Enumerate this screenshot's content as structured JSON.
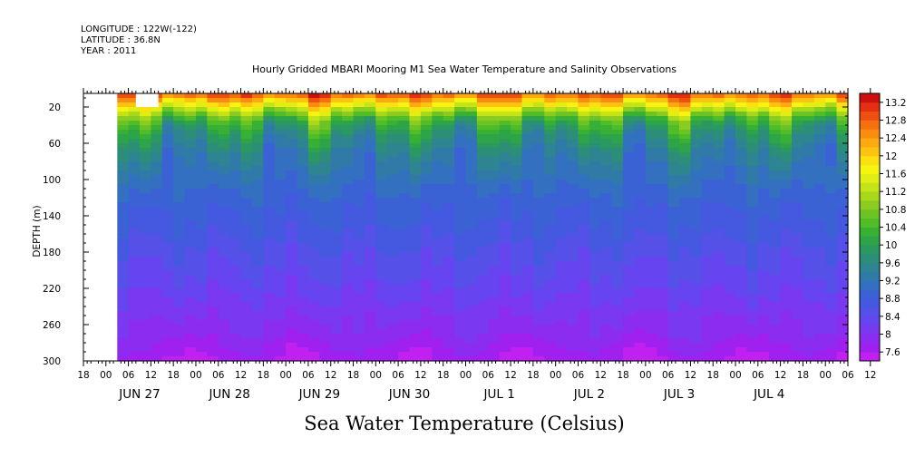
{
  "header": {
    "longitude": "LONGITUDE : 122W(-122)",
    "latitude": "LATITUDE : 36.8N",
    "year": "YEAR : 2011"
  },
  "chart_data": {
    "type": "heatmap",
    "title": "Hourly Gridded MBARI Mooring M1 Sea Water Temperature and Salinity Observations",
    "bottom_label": "Sea Water Temperature (Celsius)",
    "ylabel": "DEPTH (m)",
    "y_ticks": [
      20,
      60,
      100,
      140,
      180,
      220,
      260,
      300
    ],
    "ylim": [
      300,
      5
    ],
    "x_hour_ticks": [
      "18",
      "00",
      "06",
      "12",
      "18",
      "00",
      "06",
      "12",
      "18",
      "00",
      "06",
      "12",
      "18",
      "00",
      "06",
      "12",
      "18",
      "00",
      "06",
      "12",
      "18",
      "00",
      "06",
      "12",
      "18",
      "00",
      "06",
      "12",
      "18",
      "00",
      "06",
      "12",
      "18",
      "00",
      "06",
      "12"
    ],
    "x_date_labels": [
      "JUN 27",
      "JUN 28",
      "JUN 29",
      "JUN 30",
      "JUL  1",
      "JUL  2",
      "JUL  3",
      "JUL  4"
    ],
    "x_range_hours": [
      -9,
      195
    ],
    "data_start_hour": 0,
    "colorbar": {
      "labels": [
        "13.2",
        "12.8",
        "12.4",
        "12",
        "11.6",
        "11.2",
        "10.8",
        "10.4",
        "10",
        "9.6",
        "9.2",
        "8.8",
        "8.4",
        "8",
        "7.6"
      ],
      "levels": [
        7.4,
        7.6,
        7.8,
        8.0,
        8.2,
        8.4,
        8.6,
        8.8,
        9.0,
        9.2,
        9.4,
        9.6,
        9.8,
        10.0,
        10.2,
        10.4,
        10.6,
        10.8,
        11.0,
        11.2,
        11.4,
        11.6,
        11.8,
        12.0,
        12.2,
        12.4,
        12.6,
        12.8,
        13.0,
        13.2,
        13.4
      ],
      "colors": [
        "#c020f0",
        "#a020f0",
        "#8c2cf0",
        "#7a38f0",
        "#6644f0",
        "#5450e8",
        "#4458e0",
        "#3a62d4",
        "#3470c0",
        "#307aa8",
        "#2e8490",
        "#2c8e78",
        "#2a9860",
        "#2ea448",
        "#38b034",
        "#50bc28",
        "#6cc424",
        "#8ccc20",
        "#a8d81c",
        "#c4e418",
        "#e0ee14",
        "#f6f410",
        "#fce010",
        "#fcc410",
        "#fcaa10",
        "#fa8c10",
        "#f67010",
        "#ee5010",
        "#e23010",
        "#cc1010"
      ]
    },
    "depth_profile": {
      "depths": [
        5,
        15,
        25,
        35,
        50,
        70,
        90,
        110,
        130,
        150,
        170,
        190,
        210,
        230,
        250,
        270,
        290,
        300
      ],
      "temperatures": [
        12.9,
        12.0,
        11.1,
        10.3,
        9.8,
        9.4,
        9.2,
        9.0,
        8.85,
        8.75,
        8.6,
        8.45,
        8.35,
        8.2,
        8.05,
        7.95,
        7.75,
        7.65
      ]
    },
    "missing_blocks": [
      {
        "x0": -9,
        "x1": 0,
        "y0": 5,
        "y1": 300
      },
      {
        "x0": 5,
        "x1": 11,
        "y0": 5,
        "y1": 20
      }
    ]
  }
}
